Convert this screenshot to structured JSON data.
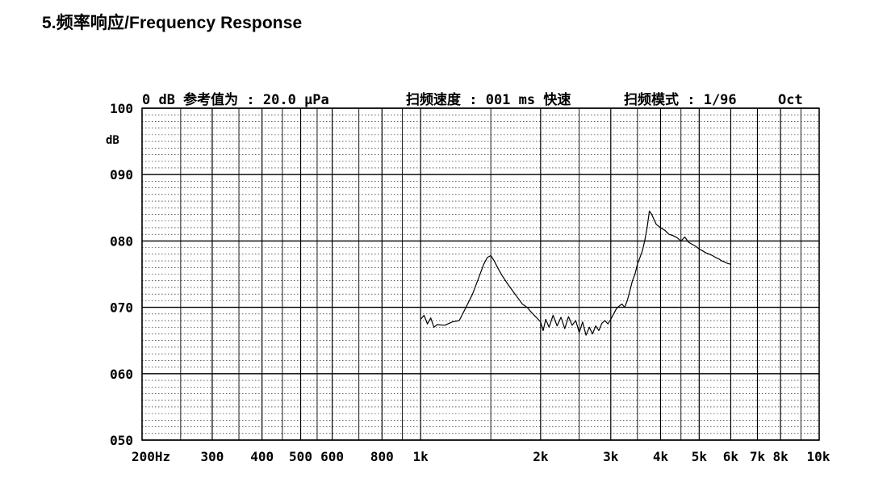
{
  "heading": "5.频率响应/Frequency Response",
  "chart_data": {
    "type": "line",
    "header": {
      "reference": "0 dB 参考值为 : 20.0 μPa",
      "sweep_speed": "扫频速度 : 001 ms 快速",
      "sweep_mode": "扫频模式 : 1/96",
      "oct": "Oct"
    },
    "ylabel": "dB",
    "ylim": [
      50,
      100
    ],
    "xlim": [
      200,
      10000
    ],
    "xscale": "log",
    "y_ticks": [
      {
        "value": 100,
        "label": "100"
      },
      {
        "value": 90,
        "label": "090"
      },
      {
        "value": 80,
        "label": "080"
      },
      {
        "value": 70,
        "label": "070"
      },
      {
        "value": 60,
        "label": "060"
      },
      {
        "value": 50,
        "label": "050"
      }
    ],
    "x_ticks": [
      {
        "value": 200,
        "label": "200Hz"
      },
      {
        "value": 300,
        "label": "300"
      },
      {
        "value": 400,
        "label": "400"
      },
      {
        "value": 500,
        "label": "500"
      },
      {
        "value": 600,
        "label": "600"
      },
      {
        "value": 800,
        "label": "800"
      },
      {
        "value": 1000,
        "label": "1k"
      },
      {
        "value": 2000,
        "label": "2k"
      },
      {
        "value": 3000,
        "label": "3k"
      },
      {
        "value": 4000,
        "label": "4k"
      },
      {
        "value": 5000,
        "label": "5k"
      },
      {
        "value": 6000,
        "label": "6k"
      },
      {
        "value": 7000,
        "label": "7k"
      },
      {
        "value": 8000,
        "label": "8k"
      },
      {
        "value": 10000,
        "label": "10k"
      }
    ],
    "grid": "on",
    "series": [
      {
        "color": "#000000",
        "x": [
          1000,
          1020,
          1040,
          1060,
          1080,
          1100,
          1150,
          1200,
          1250,
          1300,
          1350,
          1400,
          1440,
          1470,
          1500,
          1530,
          1560,
          1600,
          1650,
          1700,
          1750,
          1800,
          1850,
          1900,
          1950,
          2000,
          2030,
          2060,
          2100,
          2150,
          2200,
          2250,
          2300,
          2350,
          2400,
          2450,
          2500,
          2550,
          2600,
          2650,
          2700,
          2750,
          2800,
          2850,
          2900,
          2950,
          3000,
          3050,
          3100,
          3150,
          3200,
          3250,
          3300,
          3350,
          3400,
          3450,
          3500,
          3550,
          3600,
          3650,
          3700,
          3750,
          3800,
          3900,
          4000,
          4100,
          4200,
          4300,
          4400,
          4500,
          4600,
          4700,
          4800,
          4900,
          5000,
          5100,
          5200,
          5300,
          5400,
          5500,
          5600,
          5700,
          5800,
          5900,
          6000
        ],
        "y": [
          68.2,
          68.8,
          67.5,
          68.4,
          67.0,
          67.4,
          67.3,
          67.8,
          68.0,
          70.0,
          72.0,
          74.5,
          76.5,
          77.5,
          77.8,
          77.0,
          76.0,
          74.8,
          73.6,
          72.5,
          71.5,
          70.5,
          70.0,
          69.2,
          68.5,
          67.8,
          66.5,
          68.2,
          67.0,
          68.8,
          67.2,
          68.5,
          66.8,
          68.6,
          67.3,
          68.0,
          66.2,
          67.8,
          65.8,
          67.0,
          66.0,
          67.2,
          66.5,
          67.6,
          68.0,
          67.5,
          68.2,
          69.0,
          69.8,
          70.2,
          70.5,
          70.0,
          71.0,
          72.5,
          74.0,
          75.0,
          76.5,
          77.5,
          78.5,
          80.0,
          82.0,
          84.5,
          84.0,
          82.5,
          82.0,
          81.6,
          81.0,
          80.8,
          80.5,
          80.0,
          80.6,
          79.8,
          79.5,
          79.2,
          78.8,
          78.5,
          78.2,
          78.0,
          77.8,
          77.5,
          77.3,
          77.0,
          76.8,
          76.6,
          76.5
        ]
      }
    ]
  }
}
